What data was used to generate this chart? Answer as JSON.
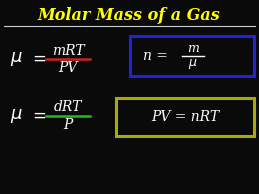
{
  "background_color": "#0a0a0a",
  "title": "Molar Mass of a Gas",
  "title_color": "#FFFF00",
  "title_underline_color": "#CCCCCC",
  "text_color": "#FFFFFF",
  "eq1_num": "mRT",
  "eq1_den": "PV",
  "eq1_line_color": "#CC2222",
  "eq2_num": "dRT",
  "eq2_den": "P",
  "eq2_line_color": "#22BB22",
  "box1_border_color": "#2222DD",
  "box2_border_color": "#AAAA00",
  "fig_width": 2.59,
  "fig_height": 1.94,
  "dpi": 100
}
